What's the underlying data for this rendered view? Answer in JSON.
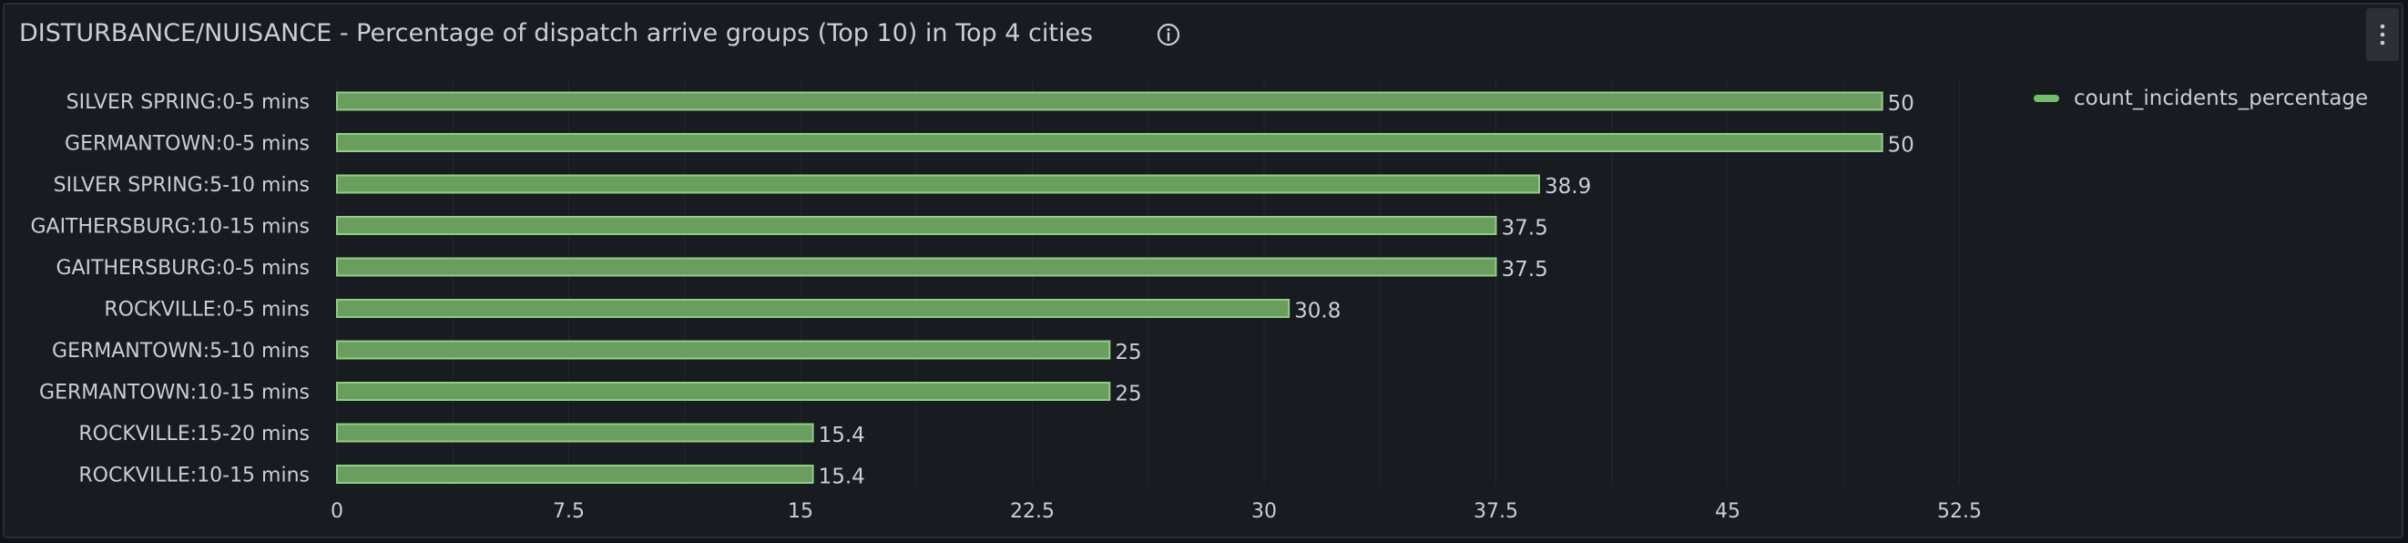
{
  "panel": {
    "title": "DISTURBANCE/NUISANCE - Percentage of dispatch arrive groups (Top 10) in Top 4 cities",
    "info_icon": "info-circle-icon",
    "menu_icon": "kebab-menu-icon"
  },
  "legend": {
    "label": "count_incidents_percentage"
  },
  "colors": {
    "bar_fill": "#6a9e5f",
    "bar_stroke": "#8fcf83",
    "grid": "#25272d",
    "text": "#ccccdc"
  },
  "chart_data": {
    "type": "bar",
    "orientation": "horizontal",
    "categories": [
      "SILVER SPRING:0-5 mins",
      "GERMANTOWN:0-5 mins",
      "SILVER SPRING:5-10 mins",
      "GAITHERSBURG:10-15 mins",
      "GAITHERSBURG:0-5 mins",
      "ROCKVILLE:0-5 mins",
      "GERMANTOWN:5-10 mins",
      "GERMANTOWN:10-15 mins",
      "ROCKVILLE:15-20 mins",
      "ROCKVILLE:10-15 mins"
    ],
    "series": [
      {
        "name": "count_incidents_percentage",
        "values": [
          50,
          50,
          38.9,
          37.5,
          37.5,
          30.8,
          25,
          25,
          15.4,
          15.4
        ]
      }
    ],
    "value_labels": [
      "50",
      "50",
      "38.9",
      "37.5",
      "37.5",
      "30.8",
      "25",
      "25",
      "15.4",
      "15.4"
    ],
    "x_ticks": [
      "0",
      "7.5",
      "15",
      "22.5",
      "30",
      "37.5",
      "45",
      "52.5"
    ],
    "x_tick_values": [
      0,
      7.5,
      15,
      22.5,
      30,
      37.5,
      45,
      52.5
    ],
    "xlim": [
      0,
      55
    ],
    "grid": true,
    "legend_position": "top-right"
  }
}
